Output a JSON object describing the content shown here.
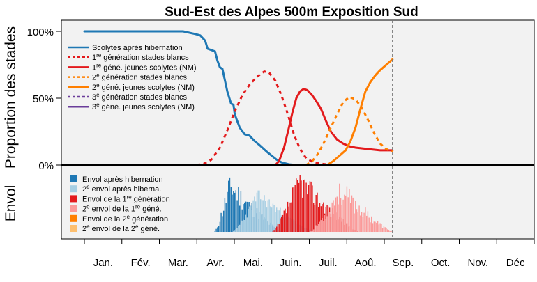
{
  "chart_data": {
    "type": "line",
    "title": "Sud-Est des Alpes 500m Exposition Sud",
    "ylabel_top": "Proportion des stades",
    "ylabel_bottom": "Envol",
    "yticks": [
      "100%",
      "50%",
      "0%"
    ],
    "ytick_values": [
      1.0,
      0.5,
      0.0
    ],
    "months": [
      "Jan.",
      "Fév.",
      "Mar.",
      "Avr.",
      "Mai.",
      "Juin.",
      "Juil.",
      "Aoû.",
      "Sep.",
      "Oct.",
      "Nov.",
      "Déc"
    ],
    "xlim_days": [
      0,
      365
    ],
    "current_day": 250,
    "grid": false,
    "legend_top": [
      {
        "text": "Scolytes après hibernation",
        "color": "#1f78b4",
        "dash": "solid"
      },
      {
        "pre": "1",
        "sup": "re",
        "post": " génération stades blancs",
        "color": "#e31a1c",
        "dash": "dashed"
      },
      {
        "pre": "1",
        "sup": "re",
        "post": " géné. jeunes scolytes (NM)",
        "color": "#e31a1c",
        "dash": "solid"
      },
      {
        "pre": "2",
        "sup": "e",
        "post": " génération stades blancs",
        "color": "#ff7f00",
        "dash": "dashed"
      },
      {
        "pre": "2",
        "sup": "e",
        "post": " géné. jeunes scolytes (NM)",
        "color": "#ff7f00",
        "dash": "solid"
      },
      {
        "pre": "3",
        "sup": "e",
        "post": " génération stades blancs",
        "color": "#6a3d9a",
        "dash": "dashed"
      },
      {
        "pre": "3",
        "sup": "e",
        "post": " géné. jeunes scolytes (NM)",
        "color": "#6a3d9a",
        "dash": "solid"
      }
    ],
    "legend_bottom": [
      {
        "text": "Envol après hibernation",
        "color": "#1f78b4"
      },
      {
        "pre": "2",
        "sup": "e",
        "post": " envol après hiberna.",
        "color": "#a6cee3"
      },
      {
        "pre": "Envol de la 1",
        "sup": "re",
        "post": " génération",
        "color": "#e31a1c"
      },
      {
        "pre": "2",
        "sup": "e",
        "post": " envol de la 1",
        "sup2": "re",
        "post2": " géné.",
        "color": "#fb9a99"
      },
      {
        "pre": "Envol de la 2",
        "sup": "e",
        "post": " génération",
        "color": "#ff7f00"
      },
      {
        "pre": "2",
        "sup": "e",
        "post": " envol de la 2",
        "sup2": "e",
        "post2": " géné.",
        "color": "#fdbf6f"
      }
    ],
    "series": [
      {
        "name": "Scolytes après hibernation",
        "color": "#1f78b4",
        "dash": "solid",
        "points": [
          [
            0,
            1.0
          ],
          [
            40,
            1.0
          ],
          [
            80,
            1.0
          ],
          [
            90,
            0.98
          ],
          [
            94,
            0.97
          ],
          [
            98,
            0.93
          ],
          [
            100,
            0.87
          ],
          [
            103,
            0.86
          ],
          [
            106,
            0.85
          ],
          [
            108,
            0.78
          ],
          [
            110,
            0.73
          ],
          [
            112,
            0.72
          ],
          [
            116,
            0.55
          ],
          [
            119,
            0.46
          ],
          [
            121,
            0.45
          ],
          [
            122,
            0.38
          ],
          [
            124,
            0.33
          ],
          [
            126,
            0.28
          ],
          [
            130,
            0.23
          ],
          [
            134,
            0.22
          ],
          [
            138,
            0.18
          ],
          [
            142,
            0.15
          ],
          [
            148,
            0.1
          ],
          [
            152,
            0.07
          ],
          [
            156,
            0.04
          ],
          [
            160,
            0.02
          ],
          [
            166,
            0.005
          ],
          [
            172,
            0.0
          ]
        ]
      },
      {
        "name": "1re génération stades blancs",
        "color": "#e31a1c",
        "dash": "dashed",
        "points": [
          [
            91,
            0.0
          ],
          [
            97,
            0.01
          ],
          [
            103,
            0.04
          ],
          [
            110,
            0.13
          ],
          [
            116,
            0.26
          ],
          [
            122,
            0.4
          ],
          [
            128,
            0.52
          ],
          [
            134,
            0.6
          ],
          [
            140,
            0.66
          ],
          [
            146,
            0.7
          ],
          [
            150,
            0.69
          ],
          [
            155,
            0.63
          ],
          [
            160,
            0.52
          ],
          [
            165,
            0.38
          ],
          [
            170,
            0.23
          ],
          [
            175,
            0.12
          ],
          [
            180,
            0.05
          ],
          [
            186,
            0.02
          ],
          [
            192,
            0.01
          ],
          [
            200,
            0.0
          ]
        ]
      },
      {
        "name": "1re géné. jeunes scolytes (NM)",
        "color": "#e31a1c",
        "dash": "solid",
        "points": [
          [
            155,
            0.0
          ],
          [
            158,
            0.03
          ],
          [
            162,
            0.13
          ],
          [
            166,
            0.28
          ],
          [
            169,
            0.4
          ],
          [
            172,
            0.5
          ],
          [
            175,
            0.55
          ],
          [
            178,
            0.57
          ],
          [
            181,
            0.56
          ],
          [
            185,
            0.52
          ],
          [
            188,
            0.48
          ],
          [
            192,
            0.42
          ],
          [
            196,
            0.33
          ],
          [
            200,
            0.25
          ],
          [
            205,
            0.19
          ],
          [
            210,
            0.16
          ],
          [
            215,
            0.14
          ],
          [
            220,
            0.13
          ],
          [
            230,
            0.12
          ],
          [
            240,
            0.11
          ],
          [
            250,
            0.11
          ]
        ]
      },
      {
        "name": "2e génération stades blancs",
        "color": "#ff7f00",
        "dash": "dashed",
        "points": [
          [
            180,
            0.0
          ],
          [
            185,
            0.03
          ],
          [
            190,
            0.09
          ],
          [
            195,
            0.18
          ],
          [
            200,
            0.28
          ],
          [
            205,
            0.38
          ],
          [
            210,
            0.47
          ],
          [
            215,
            0.51
          ],
          [
            220,
            0.49
          ],
          [
            225,
            0.43
          ],
          [
            230,
            0.34
          ],
          [
            235,
            0.24
          ],
          [
            240,
            0.16
          ],
          [
            245,
            0.12
          ],
          [
            250,
            0.1
          ]
        ]
      },
      {
        "name": "2e géné. jeunes scolytes (NM)",
        "color": "#ff7f00",
        "dash": "solid",
        "points": [
          [
            197,
            0.0
          ],
          [
            202,
            0.03
          ],
          [
            207,
            0.07
          ],
          [
            212,
            0.11
          ],
          [
            216,
            0.18
          ],
          [
            220,
            0.28
          ],
          [
            224,
            0.42
          ],
          [
            228,
            0.55
          ],
          [
            232,
            0.62
          ],
          [
            236,
            0.67
          ],
          [
            240,
            0.71
          ],
          [
            245,
            0.75
          ],
          [
            250,
            0.79
          ]
        ]
      }
    ],
    "bars": [
      {
        "name": "Envol après hibernation",
        "color": "#1f78b4",
        "from": 106,
        "to": 160,
        "peak_day": 118,
        "max_height": 0.71,
        "jitter": 0.45,
        "seed": 11
      },
      {
        "name": "2e envol après hiberna.",
        "color": "#a6cee3",
        "from": 121,
        "to": 186,
        "peak_day": 141,
        "max_height": 0.54,
        "jitter": 0.3,
        "seed": 23
      },
      {
        "name": "Envol de la 1re génération",
        "color": "#e31a1c",
        "from": 153,
        "to": 222,
        "peak_day": 175,
        "max_height": 0.77,
        "jitter": 0.4,
        "seed": 37
      },
      {
        "name": "2e envol de la 1re géné.",
        "color": "#fb9a99",
        "from": 184,
        "to": 250,
        "peak_day": 207,
        "max_height": 0.63,
        "jitter": 0.45,
        "seed": 53
      },
      {
        "name": "Envol de la 2e génération",
        "color": "#ff7f00",
        "from": 0,
        "to": 0,
        "peak_day": 0,
        "max_height": 0,
        "jitter": 0,
        "seed": 1
      },
      {
        "name": "2e envol de la 2e géné.",
        "color": "#fdbf6f",
        "from": 0,
        "to": 0,
        "peak_day": 0,
        "max_height": 0,
        "jitter": 0,
        "seed": 1
      }
    ]
  }
}
